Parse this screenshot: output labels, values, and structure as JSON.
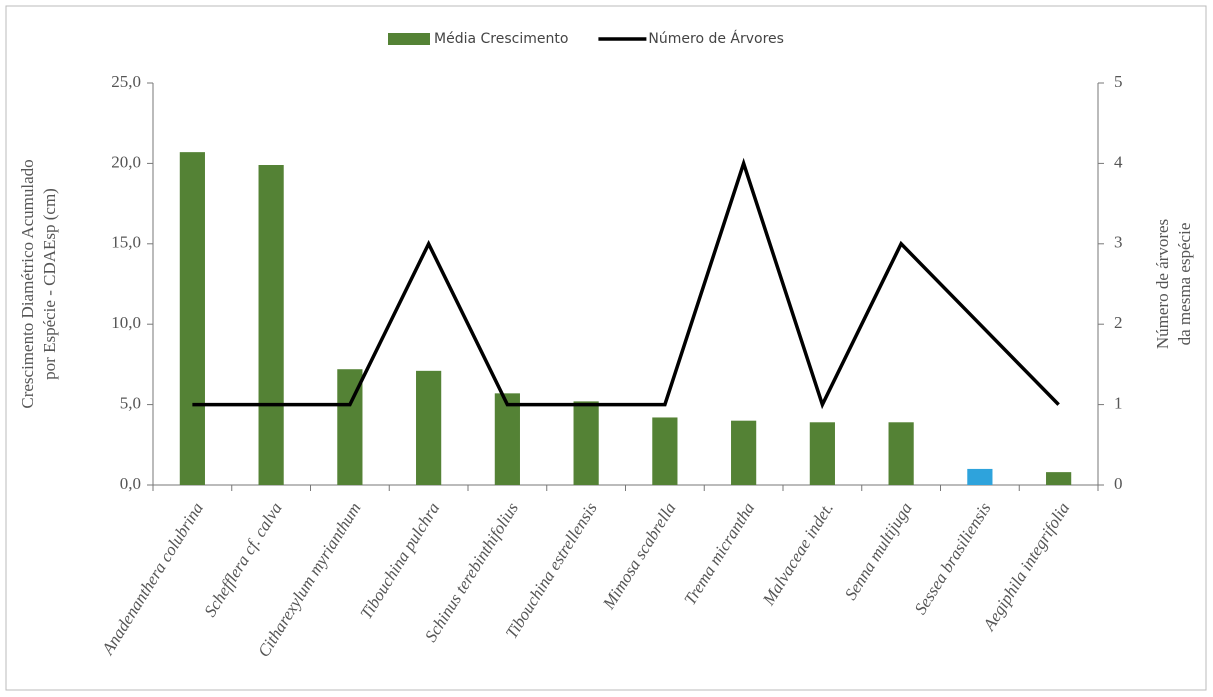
{
  "chart_data": {
    "type": "bar_line",
    "categories": [
      "Anadenanthera colubrina",
      "Schefflera cf. calva",
      "Citharexylum myrianthum",
      "Tibouchina pulchra",
      "Schinus terebinthifolius",
      "Tibouchina estrellensis",
      "Mimosa scabrella",
      "Trema micrantha",
      "Malvaceae indet.",
      "Senna multijuga",
      "Sessea brasiliensis",
      "Aegiphila integrifolia"
    ],
    "series": [
      {
        "name": "Média Crescimento",
        "type": "bar",
        "color": "#548235",
        "colors": [
          "#548235",
          "#548235",
          "#548235",
          "#548235",
          "#548235",
          "#548235",
          "#548235",
          "#548235",
          "#548235",
          "#548235",
          "#2ea3dc",
          "#548235"
        ],
        "values": [
          20.7,
          19.9,
          7.2,
          7.1,
          5.7,
          5.2,
          4.2,
          4.0,
          3.9,
          3.9,
          1.0,
          0.8
        ]
      },
      {
        "name": "Número de Árvores",
        "type": "line",
        "color": "#000000",
        "axis": "y2",
        "values": [
          1,
          1,
          1,
          3,
          1,
          1,
          1,
          4,
          1,
          3,
          2,
          1
        ]
      }
    ],
    "ylabel": [
      "Crescimento Diamétrico Acumulado",
      "por Espécie - CDAEsp (cm)"
    ],
    "y2label": [
      "Número de árvores",
      "da mesma espécie"
    ],
    "ylim": [
      0,
      25
    ],
    "yticks": [
      {
        "value": 0,
        "label": "0,0"
      },
      {
        "value": 5,
        "label": "5,0"
      },
      {
        "value": 10,
        "label": "10,0"
      },
      {
        "value": 15,
        "label": "15,0"
      },
      {
        "value": 20,
        "label": "20,0"
      },
      {
        "value": 25,
        "label": "25,0"
      }
    ],
    "y2lim": [
      0,
      5
    ],
    "y2ticks": [
      0,
      1,
      2,
      3,
      4,
      5
    ],
    "legend": "top"
  }
}
